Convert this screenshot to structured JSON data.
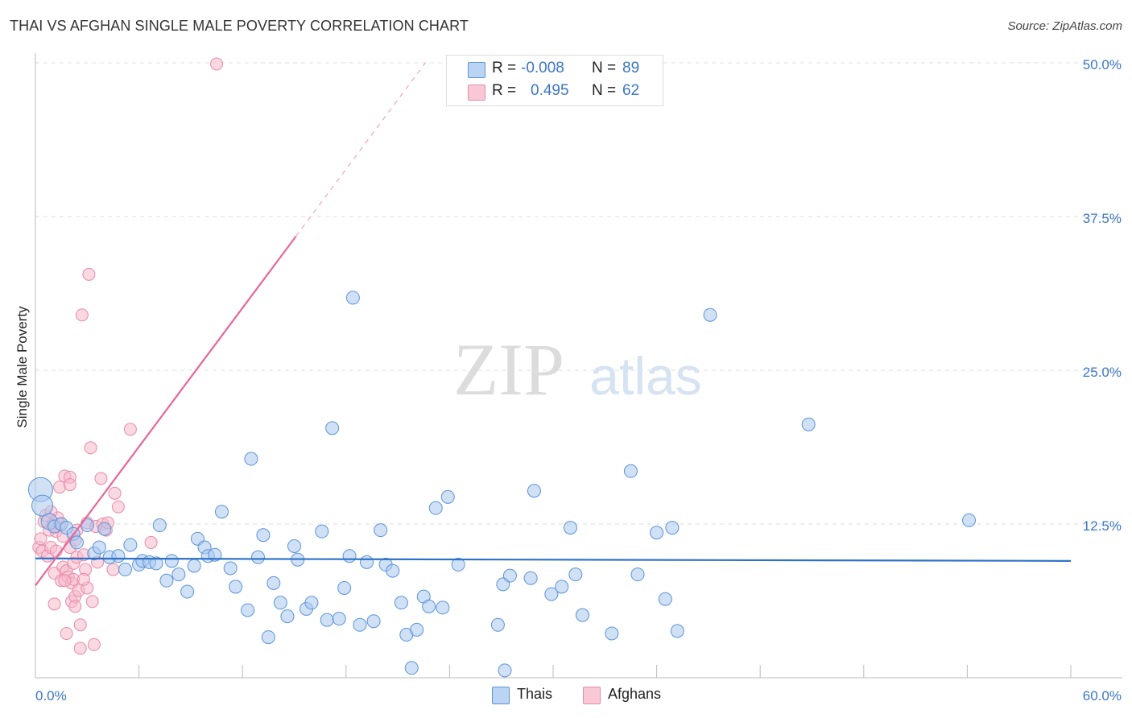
{
  "header": {
    "title": "THAI VS AFGHAN SINGLE MALE POVERTY CORRELATION CHART",
    "source": "Source: ZipAtlas.com"
  },
  "colors": {
    "thais_fill": "#a9c8ef",
    "thais_stroke": "#5b93d9",
    "thais_line": "#2e72c8",
    "afghans_fill": "#f6b9cc",
    "afghans_stroke": "#e98aa8",
    "afghans_line": "#e8669a",
    "tick_text": "#3a76c8",
    "grid": "#dddddd"
  },
  "watermark": {
    "zip": "ZIP",
    "atlas": "atlas"
  },
  "stats": {
    "thais": {
      "r_label": "R =",
      "r_value": "-0.008",
      "n_label": "N =",
      "n_value": "89"
    },
    "afghans": {
      "r_label": "R =",
      "r_value": "0.495",
      "n_label": "N =",
      "n_value": "62"
    }
  },
  "legend": {
    "thais": "Thais",
    "afghans": "Afghans"
  },
  "chart_data": {
    "type": "scatter",
    "title": "THAI VS AFGHAN SINGLE MALE POVERTY CORRELATION CHART",
    "xlabel": "",
    "ylabel": "Single Male Poverty",
    "xlim": [
      0,
      60
    ],
    "ylim": [
      0,
      50
    ],
    "x_tick_labels": [
      "0.0%",
      "60.0%"
    ],
    "y_ticks": [
      12.5,
      25.0,
      37.5,
      50.0
    ],
    "y_tick_labels": [
      "12.5%",
      "25.0%",
      "37.5%",
      "50.0%"
    ],
    "series": [
      {
        "name": "Thais",
        "trend": {
          "x": [
            0,
            60
          ],
          "y": [
            9.7,
            9.5
          ],
          "style": "solid"
        },
        "points": [
          [
            0.3,
            15.3
          ],
          [
            0.4,
            14.0
          ],
          [
            0.8,
            12.7
          ],
          [
            1.1,
            12.3
          ],
          [
            1.5,
            12.5
          ],
          [
            1.8,
            12.2
          ],
          [
            2.2,
            11.7
          ],
          [
            2.4,
            11.0
          ],
          [
            3.0,
            12.4
          ],
          [
            3.4,
            10.1
          ],
          [
            3.7,
            10.6
          ],
          [
            4.0,
            12.1
          ],
          [
            4.3,
            9.8
          ],
          [
            4.8,
            9.9
          ],
          [
            5.2,
            8.8
          ],
          [
            5.5,
            10.8
          ],
          [
            6.0,
            9.2
          ],
          [
            6.2,
            9.5
          ],
          [
            6.6,
            9.4
          ],
          [
            7.0,
            9.3
          ],
          [
            7.2,
            12.4
          ],
          [
            7.6,
            7.9
          ],
          [
            7.9,
            9.5
          ],
          [
            8.3,
            8.4
          ],
          [
            8.8,
            7.0
          ],
          [
            9.2,
            9.1
          ],
          [
            9.4,
            11.3
          ],
          [
            9.8,
            10.6
          ],
          [
            10.0,
            9.9
          ],
          [
            10.4,
            10.0
          ],
          [
            10.8,
            13.5
          ],
          [
            11.3,
            8.9
          ],
          [
            11.6,
            7.4
          ],
          [
            12.3,
            5.5
          ],
          [
            12.5,
            17.8
          ],
          [
            12.9,
            9.8
          ],
          [
            13.2,
            11.6
          ],
          [
            13.5,
            3.3
          ],
          [
            13.8,
            7.7
          ],
          [
            14.2,
            6.1
          ],
          [
            14.6,
            5.0
          ],
          [
            15.0,
            10.7
          ],
          [
            15.2,
            9.6
          ],
          [
            15.7,
            5.6
          ],
          [
            16.0,
            6.1
          ],
          [
            16.6,
            11.9
          ],
          [
            16.9,
            4.7
          ],
          [
            17.2,
            20.3
          ],
          [
            17.6,
            4.8
          ],
          [
            17.9,
            7.3
          ],
          [
            18.2,
            9.9
          ],
          [
            18.4,
            30.9
          ],
          [
            18.8,
            4.3
          ],
          [
            19.6,
            4.6
          ],
          [
            19.2,
            9.4
          ],
          [
            20.0,
            12.0
          ],
          [
            20.3,
            9.2
          ],
          [
            20.7,
            8.7
          ],
          [
            21.2,
            6.1
          ],
          [
            21.5,
            3.5
          ],
          [
            21.8,
            0.8
          ],
          [
            22.1,
            3.9
          ],
          [
            22.5,
            6.6
          ],
          [
            22.8,
            5.8
          ],
          [
            23.2,
            13.8
          ],
          [
            23.6,
            5.7
          ],
          [
            23.9,
            14.7
          ],
          [
            24.5,
            9.2
          ],
          [
            26.8,
            4.3
          ],
          [
            27.2,
            0.6
          ],
          [
            27.1,
            7.6
          ],
          [
            27.5,
            8.3
          ],
          [
            28.7,
            8.1
          ],
          [
            28.9,
            15.2
          ],
          [
            29.9,
            6.8
          ],
          [
            30.5,
            7.4
          ],
          [
            31.0,
            12.2
          ],
          [
            31.3,
            8.4
          ],
          [
            31.7,
            5.1
          ],
          [
            33.4,
            3.6
          ],
          [
            34.5,
            16.8
          ],
          [
            34.9,
            8.4
          ],
          [
            36.0,
            11.8
          ],
          [
            36.5,
            6.4
          ],
          [
            36.9,
            12.2
          ],
          [
            37.2,
            3.8
          ],
          [
            44.8,
            20.6
          ],
          [
            39.1,
            29.5
          ],
          [
            54.1,
            12.8
          ]
        ]
      },
      {
        "name": "Afghans",
        "trend": {
          "x": [
            0,
            22.6
          ],
          "y": [
            7.5,
            50.0
          ],
          "solid_until_x": 15.1,
          "style": "solid-then-dashed"
        },
        "points": [
          [
            0.2,
            10.6
          ],
          [
            0.3,
            11.3
          ],
          [
            0.4,
            10.3
          ],
          [
            0.5,
            12.7
          ],
          [
            0.6,
            13.2
          ],
          [
            0.7,
            9.9
          ],
          [
            0.8,
            12.0
          ],
          [
            0.9,
            10.6
          ],
          [
            1.0,
            12.4
          ],
          [
            1.1,
            8.5
          ],
          [
            1.1,
            6.0
          ],
          [
            1.2,
            11.9
          ],
          [
            1.3,
            13.0
          ],
          [
            1.4,
            12.5
          ],
          [
            1.4,
            15.5
          ],
          [
            1.5,
            7.9
          ],
          [
            1.6,
            11.5
          ],
          [
            1.6,
            9.0
          ],
          [
            1.7,
            16.4
          ],
          [
            1.8,
            8.7
          ],
          [
            1.8,
            3.6
          ],
          [
            1.9,
            8.2
          ],
          [
            2.0,
            10.6
          ],
          [
            2.0,
            16.3
          ],
          [
            2.0,
            15.7
          ],
          [
            2.1,
            7.7
          ],
          [
            2.1,
            6.2
          ],
          [
            2.2,
            9.3
          ],
          [
            2.2,
            8.0
          ],
          [
            2.3,
            6.6
          ],
          [
            2.3,
            5.8
          ],
          [
            2.4,
            12.0
          ],
          [
            2.4,
            9.8
          ],
          [
            2.5,
            7.1
          ],
          [
            2.6,
            2.4
          ],
          [
            2.6,
            4.3
          ],
          [
            2.7,
            29.5
          ],
          [
            2.8,
            10.0
          ],
          [
            2.9,
            8.8
          ],
          [
            3.0,
            12.6
          ],
          [
            3.0,
            7.3
          ],
          [
            3.1,
            32.8
          ],
          [
            3.2,
            18.7
          ],
          [
            3.3,
            6.2
          ],
          [
            3.4,
            2.7
          ],
          [
            3.5,
            12.3
          ],
          [
            3.6,
            9.4
          ],
          [
            3.8,
            16.2
          ],
          [
            3.9,
            12.5
          ],
          [
            4.1,
            12.0
          ],
          [
            4.2,
            12.6
          ],
          [
            4.5,
            8.8
          ],
          [
            4.6,
            15.0
          ],
          [
            4.8,
            13.9
          ],
          [
            5.5,
            20.2
          ],
          [
            6.7,
            11.0
          ],
          [
            10.5,
            49.9
          ],
          [
            0.9,
            13.5
          ],
          [
            1.2,
            10.3
          ],
          [
            1.7,
            7.9
          ],
          [
            2.3,
            11.2
          ],
          [
            2.8,
            8.0
          ]
        ]
      }
    ]
  }
}
